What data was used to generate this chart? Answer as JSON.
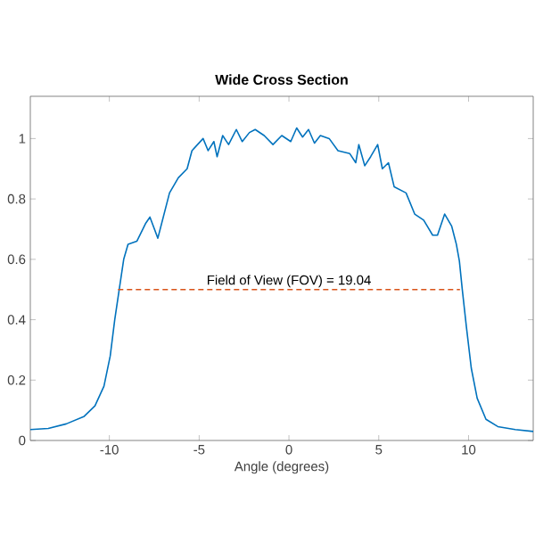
{
  "chart_data": {
    "type": "line",
    "title": "Wide Cross Section",
    "xlabel": "Angle (degrees)",
    "xlim": [
      -14.4,
      13.6
    ],
    "ylim": [
      0,
      1.14
    ],
    "xticks": [
      -10,
      -5,
      0,
      5,
      10
    ],
    "yticks": [
      0,
      0.2,
      0.4,
      0.6,
      0.8,
      1
    ],
    "series": [
      {
        "color": "#0072bd",
        "line_style": "solid",
        "x": [
          -14.4,
          -13.4,
          -12.4,
          -11.4,
          -10.8,
          -10.3,
          -9.95,
          -9.7,
          -9.45,
          -9.2,
          -8.96,
          -8.47,
          -7.97,
          -7.74,
          -7.3,
          -6.65,
          -6.16,
          -5.67,
          -5.4,
          -5.17,
          -4.78,
          -4.5,
          -4.18,
          -4.0,
          -3.69,
          -3.36,
          -2.93,
          -2.6,
          -2.2,
          -1.88,
          -1.38,
          -0.89,
          -0.4,
          0.1,
          0.43,
          0.76,
          1.09,
          1.42,
          1.75,
          2.24,
          2.73,
          3.39,
          3.72,
          3.89,
          4.22,
          4.55,
          4.94,
          5.2,
          5.54,
          5.86,
          6.52,
          7.0,
          7.5,
          8.0,
          8.27,
          8.67,
          9.06,
          9.32,
          9.49,
          9.65,
          9.88,
          10.15,
          10.48,
          10.97,
          11.63,
          12.6,
          13.6
        ],
        "values": [
          0.036,
          0.04,
          0.055,
          0.08,
          0.115,
          0.18,
          0.28,
          0.4,
          0.5,
          0.6,
          0.65,
          0.66,
          0.72,
          0.74,
          0.67,
          0.82,
          0.87,
          0.9,
          0.96,
          0.975,
          1.0,
          0.96,
          0.99,
          0.94,
          1.01,
          0.98,
          1.03,
          0.99,
          1.02,
          1.03,
          1.01,
          0.98,
          1.01,
          0.99,
          1.035,
          1.005,
          1.03,
          0.985,
          1.01,
          1.0,
          0.96,
          0.95,
          0.92,
          0.98,
          0.91,
          0.94,
          0.98,
          0.9,
          0.92,
          0.84,
          0.82,
          0.75,
          0.73,
          0.68,
          0.68,
          0.75,
          0.71,
          0.65,
          0.594,
          0.5,
          0.376,
          0.24,
          0.14,
          0.07,
          0.046,
          0.036,
          0.03
        ]
      },
      {
        "color": "#d95319",
        "line_style": "dashed",
        "x": [
          -9.52,
          9.52
        ],
        "values": [
          0.5,
          0.5
        ]
      }
    ],
    "annotations": [
      {
        "text": "Field of View (FOV) = 19.04",
        "x": 0,
        "y": 0.5
      }
    ]
  }
}
